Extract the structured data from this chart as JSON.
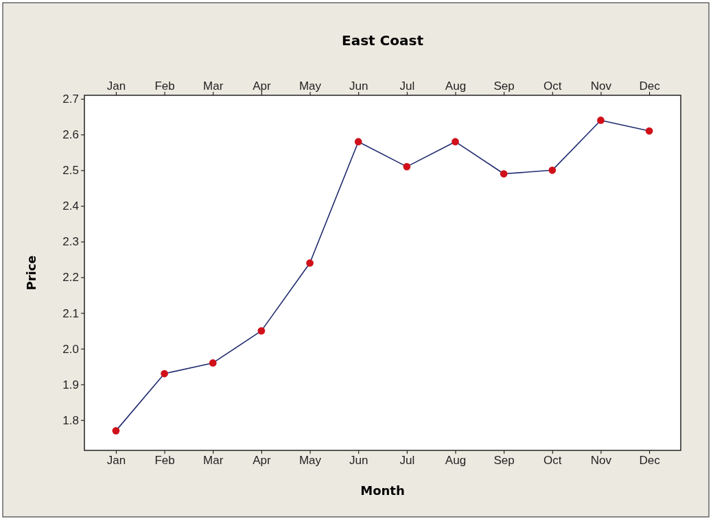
{
  "chart_data": {
    "type": "line",
    "title": "East Coast",
    "xlabel": "Month",
    "ylabel": "Price",
    "categories": [
      "Jan",
      "Feb",
      "Mar",
      "Apr",
      "May",
      "Jun",
      "Jul",
      "Aug",
      "Sep",
      "Oct",
      "Nov",
      "Dec"
    ],
    "series": [
      {
        "color": "#1f2a6e",
        "values": [
          1.77,
          1.93,
          1.96,
          2.05,
          2.24,
          2.58,
          2.51,
          2.58,
          2.49,
          2.5,
          2.64,
          2.61
        ]
      }
    ],
    "ylim": [
      1.715,
      2.71
    ],
    "yticks": [
      1.8,
      1.9,
      {
        "value": 2,
        "label": "2.0"
      },
      2.1,
      2.2,
      2.3,
      2.4,
      2.5,
      2.6,
      2.7
    ],
    "marker": "circle",
    "grid": false
  }
}
